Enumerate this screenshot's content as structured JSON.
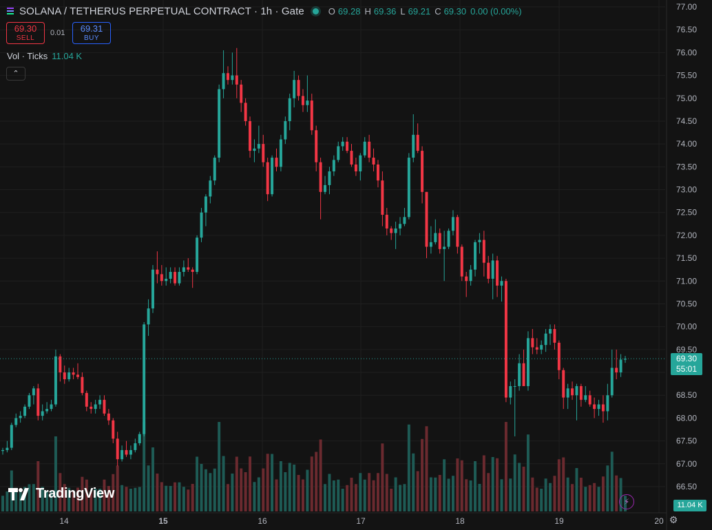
{
  "header": {
    "symbol": "SOLANA / TETHERUS PERPETUAL CONTRACT · 1h · Gate",
    "ohlc": {
      "o_label": "O",
      "o": "69.28",
      "h_label": "H",
      "h": "69.36",
      "l_label": "L",
      "l": "69.21",
      "c_label": "C",
      "c": "69.30",
      "change": "0.00 (0.00%)"
    }
  },
  "trade": {
    "sell_price": "69.30",
    "sell_label": "SELL",
    "spread": "0.01",
    "buy_price": "69.31",
    "buy_label": "BUY"
  },
  "volume_indicator": {
    "label": "Vol · Ticks",
    "value": "11.04 K"
  },
  "collapse_icon": "chevron-up-icon",
  "branding": "TradingView",
  "last_price_label": {
    "price": "69.30",
    "countdown": "55:01"
  },
  "volume_label": "11.04 K",
  "colors": {
    "up": "#26a69a",
    "down": "#f23645",
    "volume_up": "#1e5b55",
    "volume_down": "#6b2a2f",
    "background": "#131313",
    "grid": "#1f1f1f"
  },
  "chart_data": {
    "type": "candlestick",
    "title": "SOLANA / TETHERUS PERPETUAL CONTRACT",
    "interval": "1h",
    "exchange": "Gate",
    "y_ticks": [
      "77.00",
      "76.50",
      "76.00",
      "75.50",
      "75.00",
      "74.50",
      "74.00",
      "73.50",
      "73.00",
      "72.50",
      "72.00",
      "71.50",
      "71.00",
      "70.50",
      "70.00",
      "69.50",
      "69.00",
      "68.50",
      "68.00",
      "67.50",
      "67.00",
      "66.50"
    ],
    "ylim": [
      66.25,
      77.1
    ],
    "x_ticks": [
      "14",
      "15",
      "16",
      "17",
      "18",
      "19",
      "20"
    ],
    "last_price": 69.3,
    "grid": true,
    "candles": [
      [
        67.28,
        67.35,
        67.2,
        67.3
      ],
      [
        67.3,
        67.5,
        67.25,
        67.35
      ],
      [
        67.35,
        67.9,
        67.3,
        67.85
      ],
      [
        67.85,
        68.1,
        67.8,
        68.0
      ],
      [
        68.0,
        68.15,
        67.9,
        68.05
      ],
      [
        68.05,
        68.3,
        68.0,
        68.25
      ],
      [
        68.25,
        68.55,
        68.2,
        68.5
      ],
      [
        68.5,
        68.7,
        68.3,
        68.65
      ],
      [
        68.65,
        68.75,
        67.95,
        68.05
      ],
      [
        68.05,
        68.3,
        67.95,
        68.15
      ],
      [
        68.15,
        68.35,
        68.1,
        68.2
      ],
      [
        68.2,
        68.4,
        68.15,
        68.3
      ],
      [
        68.3,
        69.5,
        68.25,
        69.35
      ],
      [
        69.35,
        69.4,
        68.8,
        69.0
      ],
      [
        69.0,
        69.15,
        68.75,
        68.85
      ],
      [
        68.85,
        69.1,
        68.8,
        69.0
      ],
      [
        69.0,
        69.1,
        68.85,
        68.95
      ],
      [
        68.95,
        69.2,
        68.85,
        68.9
      ],
      [
        68.9,
        69.0,
        68.5,
        68.55
      ],
      [
        68.55,
        68.6,
        68.15,
        68.25
      ],
      [
        68.25,
        68.35,
        68.1,
        68.2
      ],
      [
        68.2,
        68.4,
        68.1,
        68.3
      ],
      [
        68.3,
        68.5,
        68.2,
        68.4
      ],
      [
        68.4,
        68.5,
        68.05,
        68.1
      ],
      [
        68.1,
        68.2,
        67.85,
        67.95
      ],
      [
        67.95,
        68.0,
        67.45,
        67.55
      ],
      [
        67.55,
        67.7,
        66.95,
        67.1
      ],
      [
        67.1,
        67.4,
        67.05,
        67.3
      ],
      [
        67.3,
        67.5,
        67.15,
        67.2
      ],
      [
        67.2,
        67.4,
        67.1,
        67.3
      ],
      [
        67.3,
        67.55,
        67.25,
        67.45
      ],
      [
        67.45,
        67.7,
        67.4,
        67.65
      ],
      [
        67.65,
        70.1,
        67.6,
        70.05
      ],
      [
        70.05,
        70.6,
        69.8,
        70.4
      ],
      [
        70.4,
        71.35,
        70.3,
        71.25
      ],
      [
        71.25,
        71.65,
        70.95,
        71.15
      ],
      [
        71.15,
        71.35,
        70.9,
        71.0
      ],
      [
        71.0,
        71.3,
        70.9,
        71.05
      ],
      [
        71.05,
        71.3,
        70.95,
        71.2
      ],
      [
        71.2,
        71.3,
        70.9,
        70.95
      ],
      [
        70.95,
        71.3,
        70.9,
        71.2
      ],
      [
        71.2,
        71.45,
        71.1,
        71.3
      ],
      [
        71.3,
        71.5,
        71.2,
        71.25
      ],
      [
        71.25,
        71.3,
        70.85,
        71.2
      ],
      [
        71.2,
        72.0,
        71.15,
        71.95
      ],
      [
        71.95,
        72.6,
        71.85,
        72.5
      ],
      [
        72.5,
        72.9,
        72.2,
        72.85
      ],
      [
        72.85,
        73.3,
        72.7,
        73.2
      ],
      [
        73.2,
        73.75,
        73.1,
        73.7
      ],
      [
        73.7,
        75.3,
        73.6,
        75.2
      ],
      [
        75.2,
        76.05,
        75.0,
        75.55
      ],
      [
        75.55,
        75.7,
        75.3,
        75.4
      ],
      [
        75.4,
        76.0,
        75.3,
        75.5
      ],
      [
        75.5,
        76.1,
        75.0,
        75.3
      ],
      [
        75.3,
        75.4,
        74.7,
        74.9
      ],
      [
        74.9,
        75.0,
        74.4,
        74.5
      ],
      [
        74.5,
        74.6,
        73.7,
        73.85
      ],
      [
        73.85,
        74.1,
        73.6,
        73.9
      ],
      [
        73.9,
        74.4,
        73.8,
        74.0
      ],
      [
        74.0,
        74.2,
        73.5,
        73.6
      ],
      [
        73.6,
        73.7,
        72.75,
        72.9
      ],
      [
        72.9,
        73.75,
        72.85,
        73.7
      ],
      [
        73.7,
        73.9,
        73.4,
        73.5
      ],
      [
        73.5,
        74.2,
        73.4,
        74.1
      ],
      [
        74.1,
        74.6,
        74.0,
        74.5
      ],
      [
        74.5,
        75.1,
        74.3,
        75.0
      ],
      [
        75.0,
        75.6,
        74.8,
        75.4
      ],
      [
        75.4,
        75.5,
        74.95,
        75.05
      ],
      [
        75.05,
        75.2,
        74.7,
        74.85
      ],
      [
        74.85,
        75.5,
        74.7,
        74.95
      ],
      [
        74.95,
        75.1,
        74.2,
        74.3
      ],
      [
        74.3,
        74.4,
        73.4,
        73.6
      ],
      [
        73.6,
        73.7,
        72.35,
        72.95
      ],
      [
        72.95,
        73.3,
        72.9,
        73.1
      ],
      [
        73.1,
        73.5,
        72.9,
        73.4
      ],
      [
        73.4,
        73.75,
        73.3,
        73.65
      ],
      [
        73.65,
        74.05,
        73.6,
        73.95
      ],
      [
        73.95,
        74.15,
        73.85,
        74.05
      ],
      [
        74.05,
        74.15,
        73.8,
        73.85
      ],
      [
        73.85,
        74.0,
        73.5,
        73.55
      ],
      [
        73.55,
        73.7,
        73.3,
        73.4
      ],
      [
        73.4,
        73.8,
        73.2,
        73.75
      ],
      [
        73.75,
        74.15,
        73.7,
        74.05
      ],
      [
        74.05,
        74.2,
        73.6,
        73.7
      ],
      [
        73.7,
        73.9,
        73.4,
        73.55
      ],
      [
        73.55,
        73.65,
        73.05,
        73.2
      ],
      [
        73.2,
        73.4,
        72.2,
        72.45
      ],
      [
        72.45,
        72.6,
        72.0,
        72.15
      ],
      [
        72.15,
        72.2,
        71.9,
        72.05
      ],
      [
        72.05,
        72.3,
        71.7,
        72.15
      ],
      [
        72.15,
        72.4,
        72.0,
        72.25
      ],
      [
        72.25,
        72.6,
        72.2,
        72.4
      ],
      [
        72.4,
        73.8,
        72.35,
        73.7
      ],
      [
        73.7,
        74.65,
        73.6,
        74.2
      ],
      [
        74.2,
        74.45,
        73.8,
        73.85
      ],
      [
        73.85,
        73.95,
        72.7,
        72.95
      ],
      [
        72.95,
        72.95,
        71.5,
        71.75
      ],
      [
        71.75,
        72.2,
        71.6,
        71.85
      ],
      [
        71.85,
        72.35,
        71.8,
        72.05
      ],
      [
        72.05,
        72.15,
        71.6,
        71.7
      ],
      [
        71.7,
        72.1,
        71.0,
        71.75
      ],
      [
        71.75,
        72.15,
        71.7,
        72.1
      ],
      [
        72.1,
        72.55,
        72.0,
        72.4
      ],
      [
        72.4,
        72.45,
        71.6,
        71.75
      ],
      [
        71.75,
        71.8,
        71.0,
        71.1
      ],
      [
        71.1,
        71.2,
        70.65,
        71.0
      ],
      [
        71.0,
        71.35,
        70.9,
        71.25
      ],
      [
        71.25,
        71.9,
        71.1,
        71.85
      ],
      [
        71.85,
        72.05,
        71.6,
        71.9
      ],
      [
        71.9,
        72.1,
        71.1,
        71.4
      ],
      [
        71.4,
        71.55,
        70.95,
        71.05
      ],
      [
        71.05,
        71.6,
        70.6,
        71.45
      ],
      [
        71.45,
        71.55,
        70.65,
        70.9
      ],
      [
        70.9,
        71.1,
        70.55,
        71.0
      ],
      [
        71.0,
        71.05,
        68.35,
        68.45
      ],
      [
        68.45,
        68.8,
        68.3,
        68.7
      ],
      [
        68.7,
        68.85,
        67.6,
        68.7
      ],
      [
        68.7,
        69.4,
        68.6,
        69.2
      ],
      [
        69.2,
        69.5,
        68.8,
        68.7
      ],
      [
        68.7,
        69.9,
        68.6,
        69.75
      ],
      [
        69.75,
        69.95,
        69.4,
        69.55
      ],
      [
        69.55,
        69.75,
        69.4,
        69.5
      ],
      [
        69.5,
        69.7,
        69.4,
        69.6
      ],
      [
        69.6,
        69.95,
        69.45,
        69.85
      ],
      [
        69.85,
        70.05,
        69.6,
        69.95
      ],
      [
        69.95,
        70.05,
        69.5,
        69.65
      ],
      [
        69.65,
        69.7,
        68.85,
        69.05
      ],
      [
        69.05,
        69.1,
        68.2,
        68.45
      ],
      [
        68.45,
        68.75,
        68.2,
        68.65
      ],
      [
        68.65,
        68.8,
        68.4,
        68.5
      ],
      [
        68.5,
        68.75,
        67.95,
        68.7
      ],
      [
        68.7,
        68.75,
        68.25,
        68.4
      ],
      [
        68.4,
        68.7,
        68.35,
        68.5
      ],
      [
        68.5,
        68.6,
        68.25,
        68.3
      ],
      [
        68.3,
        68.45,
        68.0,
        68.2
      ],
      [
        68.2,
        68.4,
        68.05,
        68.3
      ],
      [
        68.3,
        68.5,
        67.9,
        68.15
      ],
      [
        68.15,
        68.75,
        67.95,
        68.5
      ],
      [
        68.5,
        69.5,
        68.45,
        69.1
      ],
      [
        69.1,
        69.5,
        68.85,
        69.0
      ],
      [
        69.0,
        69.4,
        68.9,
        69.28
      ],
      [
        69.28,
        69.36,
        69.21,
        69.3
      ]
    ]
  }
}
